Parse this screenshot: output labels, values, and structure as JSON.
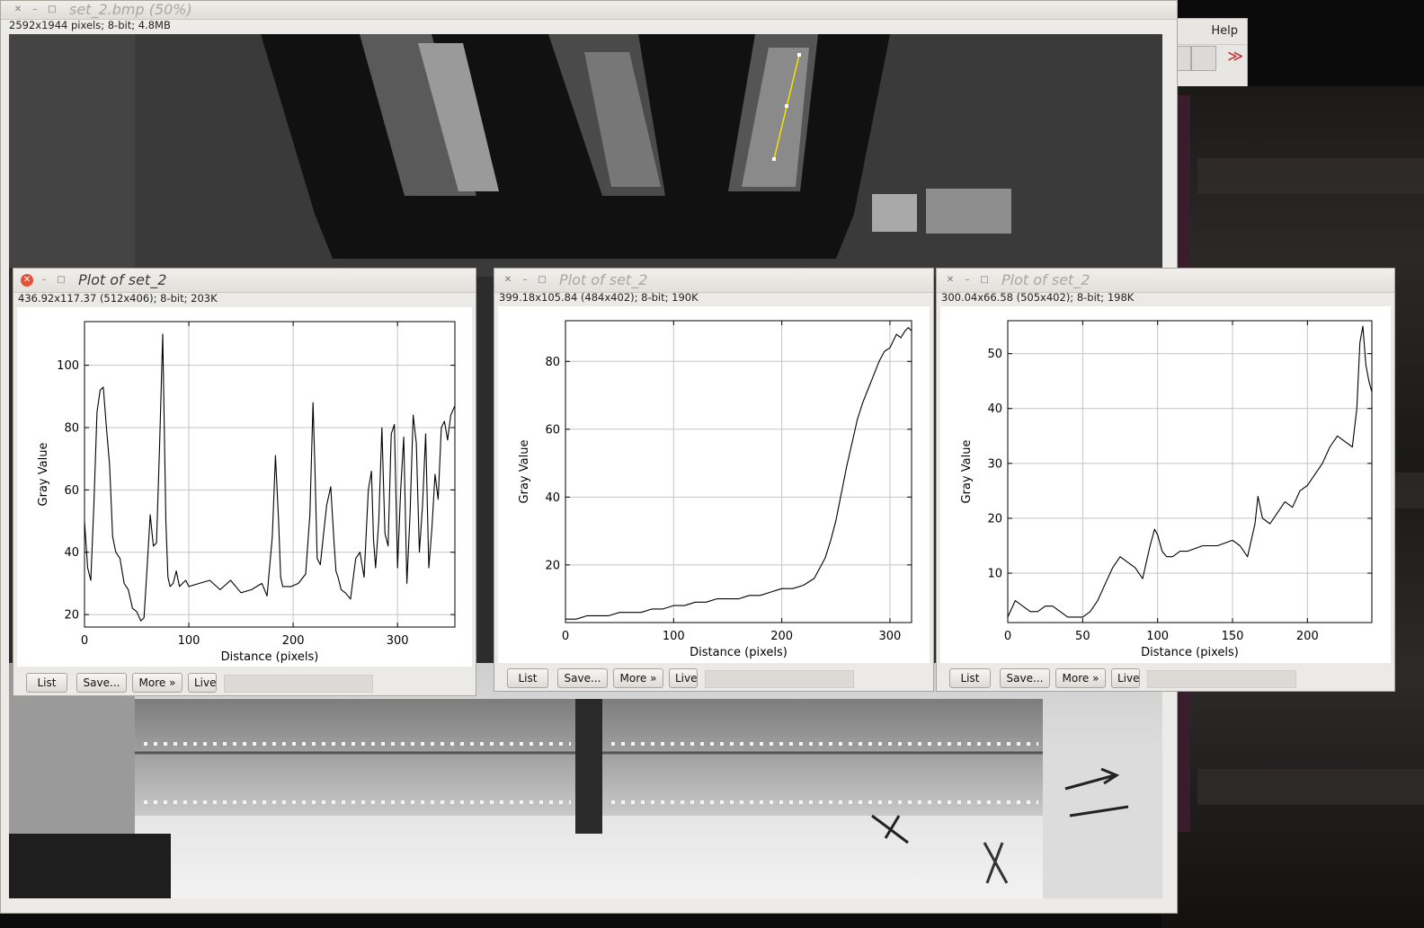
{
  "toolbar": {
    "help_label": "Help",
    "more_tools_glyph": "≫"
  },
  "main_window": {
    "title": "set_2.bmp (50%)",
    "info": "2592x1944 pixels; 8-bit; 4.8MB"
  },
  "plot_windows": [
    {
      "title": "Plot of set_2",
      "info": "436.92x117.37   (512x406); 8-bit; 203K",
      "buttons": {
        "list": "List",
        "save": "Save...",
        "more": "More »",
        "live": "Live"
      }
    },
    {
      "title": "Plot of set_2",
      "info": "399.18x105.84   (484x402); 8-bit; 190K",
      "buttons": {
        "list": "List",
        "save": "Save...",
        "more": "More »",
        "live": "Live"
      }
    },
    {
      "title": "Plot of set_2",
      "info": "300.04x66.58   (505x402); 8-bit; 198K",
      "buttons": {
        "list": "List",
        "save": "Save...",
        "more": "More »",
        "live": "Live"
      }
    }
  ],
  "chart_data": [
    {
      "type": "line",
      "xlabel": "Distance (pixels)",
      "ylabel": "Gray Value",
      "xlim": [
        0,
        355
      ],
      "ylim": [
        16,
        114
      ],
      "xticks": [
        0,
        100,
        200,
        300
      ],
      "yticks": [
        20,
        40,
        60,
        80,
        100
      ],
      "grid": true,
      "series": [
        {
          "x": [
            0,
            3,
            6,
            9,
            12,
            15,
            18,
            21,
            24,
            27,
            30,
            34,
            38,
            42,
            46,
            50,
            54,
            57,
            60,
            63,
            66,
            69,
            72,
            75,
            78,
            80,
            82,
            85,
            88,
            91,
            94,
            97,
            100,
            110,
            120,
            130,
            140,
            150,
            160,
            170,
            175,
            180,
            183,
            186,
            188,
            190,
            194,
            198,
            205,
            212,
            216,
            219,
            221,
            223,
            226,
            232,
            236,
            239,
            241,
            243,
            246,
            250,
            255,
            260,
            264,
            268,
            272,
            275,
            277,
            279,
            282,
            285,
            288,
            291,
            294,
            297,
            300,
            303,
            306,
            309,
            312,
            315,
            318,
            321,
            324,
            327,
            330,
            333,
            336,
            339,
            342,
            345,
            348,
            351,
            355
          ],
          "values": [
            50,
            35,
            31,
            55,
            85,
            92,
            93,
            80,
            68,
            45,
            40,
            38,
            30,
            28,
            22,
            21,
            18,
            19,
            35,
            52,
            42,
            43,
            75,
            110,
            50,
            32,
            29,
            30,
            34,
            29,
            30,
            31,
            29,
            30,
            31,
            28,
            31,
            27,
            28,
            30,
            26,
            45,
            71,
            50,
            32,
            29,
            29,
            29,
            30,
            33,
            52,
            88,
            65,
            38,
            36,
            55,
            61,
            44,
            34,
            32,
            28,
            27,
            25,
            38,
            40,
            32,
            60,
            66,
            44,
            35,
            50,
            80,
            46,
            42,
            78,
            81,
            35,
            60,
            77,
            30,
            52,
            84,
            75,
            40,
            55,
            78,
            35,
            48,
            65,
            57,
            80,
            82,
            76,
            84,
            87
          ]
        }
      ]
    },
    {
      "type": "line",
      "xlabel": "Distance (pixels)",
      "ylabel": "Gray Value",
      "xlim": [
        0,
        320
      ],
      "ylim": [
        3,
        92
      ],
      "xticks": [
        0,
        100,
        200,
        300
      ],
      "yticks": [
        20,
        40,
        60,
        80
      ],
      "grid": true,
      "series": [
        {
          "x": [
            0,
            10,
            20,
            30,
            40,
            50,
            60,
            70,
            80,
            90,
            100,
            110,
            120,
            130,
            140,
            150,
            160,
            170,
            180,
            190,
            200,
            210,
            220,
            230,
            235,
            240,
            245,
            250,
            255,
            260,
            265,
            270,
            275,
            280,
            285,
            290,
            295,
            300,
            303,
            306,
            310,
            314,
            317,
            320
          ],
          "values": [
            4,
            4,
            5,
            5,
            5,
            6,
            6,
            6,
            7,
            7,
            8,
            8,
            9,
            9,
            10,
            10,
            10,
            11,
            11,
            12,
            13,
            13,
            14,
            16,
            19,
            22,
            27,
            33,
            41,
            49,
            56,
            63,
            68,
            72,
            76,
            80,
            83,
            84,
            86,
            88,
            87,
            89,
            90,
            89
          ]
        }
      ]
    },
    {
      "type": "line",
      "xlabel": "Distance (pixels)",
      "ylabel": "Gray Value",
      "xlim": [
        0,
        243
      ],
      "ylim": [
        1,
        56
      ],
      "xticks": [
        0,
        50,
        100,
        150,
        200
      ],
      "yticks": [
        10,
        20,
        30,
        40,
        50
      ],
      "grid": true,
      "series": [
        {
          "x": [
            0,
            5,
            10,
            15,
            20,
            25,
            30,
            35,
            40,
            45,
            50,
            55,
            60,
            65,
            70,
            75,
            80,
            85,
            90,
            95,
            98,
            100,
            103,
            106,
            110,
            115,
            120,
            130,
            140,
            150,
            155,
            160,
            165,
            167,
            170,
            175,
            180,
            185,
            190,
            195,
            200,
            205,
            210,
            215,
            220,
            225,
            230,
            233,
            235,
            237,
            239,
            241,
            243
          ],
          "values": [
            2,
            5,
            4,
            3,
            3,
            4,
            4,
            3,
            2,
            2,
            2,
            3,
            5,
            8,
            11,
            13,
            12,
            11,
            9,
            15,
            18,
            17,
            14,
            13,
            13,
            14,
            14,
            15,
            15,
            16,
            15,
            13,
            19,
            24,
            20,
            19,
            21,
            23,
            22,
            25,
            26,
            28,
            30,
            33,
            35,
            34,
            33,
            40,
            52,
            55,
            48,
            45,
            43
          ]
        }
      ]
    }
  ]
}
